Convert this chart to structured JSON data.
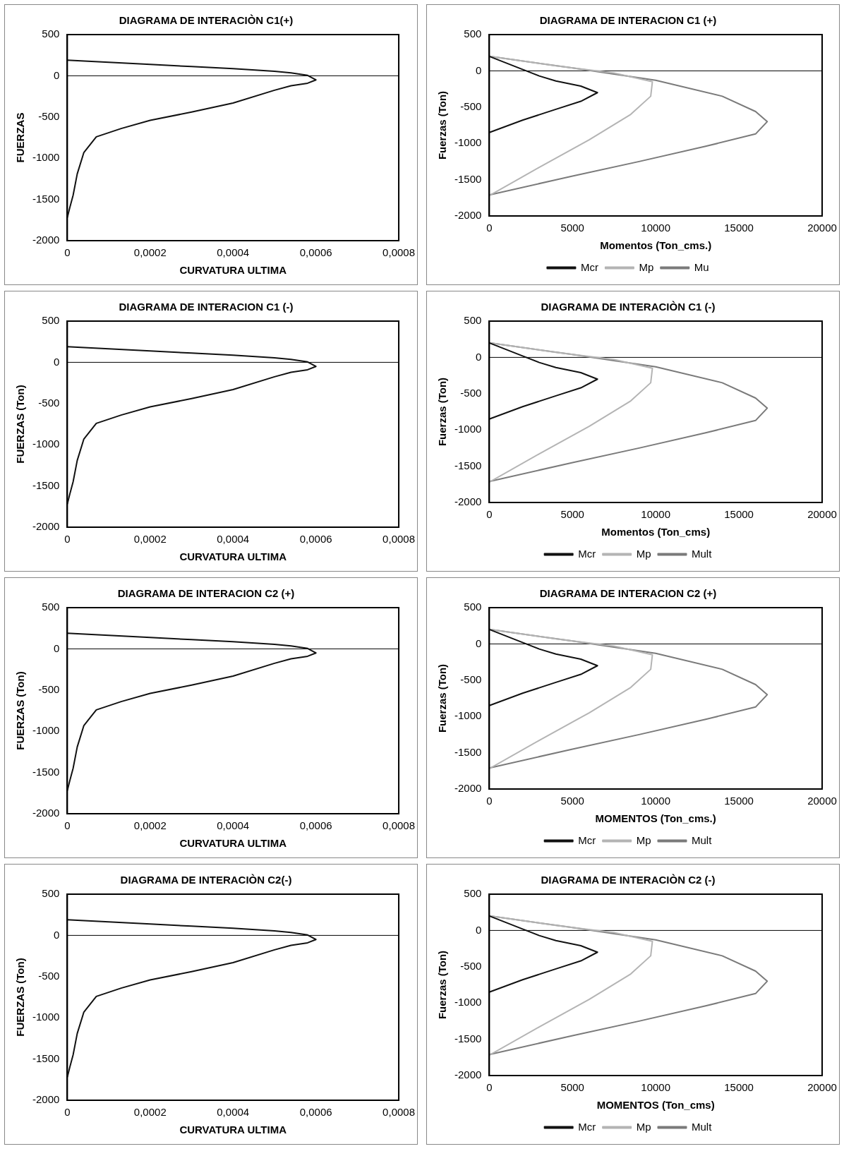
{
  "chart_data": [
    {
      "type": "line",
      "ref_lines": [
        {
          "axis": "y",
          "value": 0
        }
      ],
      "title": "DIAGRAMA DE INTERACIÒN C1(+)",
      "xlabel": "CURVATURA ULTIMA",
      "ylabel": "FUERZAS",
      "xlim": [
        0,
        0.0008
      ],
      "xticks": [
        0,
        {
          "value": 0.0002,
          "label": "0,0002"
        },
        {
          "value": 0.0004,
          "label": "0,0004"
        },
        {
          "value": 0.0006,
          "label": "0,0006"
        },
        {
          "value": 0.0008,
          "label": "0,0008"
        }
      ],
      "ylim": [
        -2000,
        500
      ],
      "yticks": [
        -2000,
        -1500,
        -1000,
        -500,
        0,
        500
      ],
      "grid": false,
      "legend": false,
      "marker": "none",
      "series": [
        {
          "color": "#111111",
          "x": [
            0,
            0.0001,
            0.0002,
            0.0003,
            0.0004,
            0.0005,
            0.00054,
            0.00058,
            0.0006,
            0.00058,
            0.00054,
            0.0005,
            0.0004,
            0.0003,
            0.0002,
            0.00013,
            7e-05,
            4e-05,
            2.4e-05,
            1.4e-05,
            6e-06,
            0
          ],
          "values": [
            190,
            165,
            138,
            112,
            86,
            55,
            35,
            5,
            -50,
            -90,
            -120,
            -175,
            -330,
            -440,
            -540,
            -640,
            -740,
            -930,
            -1190,
            -1450,
            -1600,
            -1720
          ]
        }
      ]
    },
    {
      "type": "line",
      "ref_lines": [
        {
          "axis": "y",
          "value": 0
        }
      ],
      "title": "DIAGRAMA DE INTERACION C1 (+)",
      "xlabel": "Momentos (Ton_cms.)",
      "ylabel": "Fuerzas (Ton)",
      "xlim": [
        0,
        20000
      ],
      "xticks": [
        0,
        5000,
        10000,
        15000,
        20000
      ],
      "ylim": [
        -2000,
        500
      ],
      "yticks": [
        -2000,
        -1500,
        -1000,
        -500,
        0,
        500
      ],
      "grid": false,
      "legend": "bottom",
      "marker": "none",
      "series": [
        {
          "name": "Mcr",
          "color": "#111111",
          "x": [
            0,
            1000,
            2000,
            3000,
            4000,
            5500,
            6500,
            5500,
            4000,
            2000,
            0
          ],
          "values": [
            200,
            110,
            20,
            -70,
            -140,
            -210,
            -300,
            -420,
            -530,
            -680,
            -850
          ]
        },
        {
          "name": "Mp",
          "color": "#b4b4b4",
          "x": [
            0,
            4000,
            7500,
            9800,
            9700,
            8500,
            6000,
            3000,
            0
          ],
          "values": [
            200,
            70,
            -30,
            -150,
            -350,
            -600,
            -950,
            -1330,
            -1720
          ]
        },
        {
          "name": "Mu",
          "color": "#7a7a7a",
          "x": [
            0,
            5000,
            10000,
            14000,
            16000,
            16700,
            16000,
            13000,
            9000,
            5000,
            0
          ],
          "values": [
            200,
            40,
            -130,
            -350,
            -560,
            -700,
            -870,
            -1040,
            -1250,
            -1450,
            -1710
          ]
        }
      ]
    },
    {
      "type": "line",
      "ref_lines": [
        {
          "axis": "y",
          "value": 0
        }
      ],
      "title": "DIAGRAMA DE INTERACION C1 (-)",
      "xlabel": "CURVATURA ULTIMA",
      "ylabel": "FUERZAS (Ton)",
      "xlim": [
        0,
        0.0008
      ],
      "xticks": [
        0,
        {
          "value": 0.0002,
          "label": "0,0002"
        },
        {
          "value": 0.0004,
          "label": "0,0004"
        },
        {
          "value": 0.0006,
          "label": "0,0006"
        },
        {
          "value": 0.0008,
          "label": "0,0008"
        }
      ],
      "ylim": [
        -2000,
        500
      ],
      "yticks": [
        -2000,
        -1500,
        -1000,
        -500,
        0,
        500
      ],
      "grid": false,
      "legend": false,
      "marker": "none",
      "series": [
        {
          "color": "#111111",
          "x": [
            0,
            0.0001,
            0.0002,
            0.0003,
            0.0004,
            0.0005,
            0.00054,
            0.00058,
            0.0006,
            0.00058,
            0.00054,
            0.0005,
            0.0004,
            0.0003,
            0.0002,
            0.00013,
            7e-05,
            4e-05,
            2.4e-05,
            1.4e-05,
            6e-06,
            0
          ],
          "values": [
            190,
            165,
            138,
            112,
            86,
            55,
            35,
            5,
            -50,
            -90,
            -120,
            -175,
            -330,
            -440,
            -540,
            -640,
            -740,
            -930,
            -1190,
            -1450,
            -1600,
            -1720
          ]
        }
      ]
    },
    {
      "type": "line",
      "ref_lines": [
        {
          "axis": "y",
          "value": 0
        }
      ],
      "title": "DIAGRAMA DE INTERACIÒN C1 (-)",
      "xlabel": "Momentos (Ton_cms)",
      "ylabel": "Fuerzas (Ton)",
      "xlim": [
        0,
        20000
      ],
      "xticks": [
        0,
        5000,
        10000,
        15000,
        20000
      ],
      "ylim": [
        -2000,
        500
      ],
      "yticks": [
        -2000,
        -1500,
        -1000,
        -500,
        0,
        500
      ],
      "grid": false,
      "legend": "bottom",
      "marker": "none",
      "series": [
        {
          "name": "Mcr",
          "color": "#111111",
          "x": [
            0,
            1000,
            2000,
            3000,
            4000,
            5500,
            6500,
            5500,
            4000,
            2000,
            0
          ],
          "values": [
            200,
            110,
            20,
            -70,
            -140,
            -210,
            -300,
            -420,
            -530,
            -680,
            -850
          ]
        },
        {
          "name": "Mp",
          "color": "#b4b4b4",
          "x": [
            0,
            4000,
            7500,
            9800,
            9700,
            8500,
            6000,
            3000,
            0
          ],
          "values": [
            200,
            70,
            -30,
            -150,
            -350,
            -600,
            -950,
            -1330,
            -1720
          ]
        },
        {
          "name": "Mult",
          "color": "#7a7a7a",
          "x": [
            0,
            5000,
            10000,
            14000,
            16000,
            16700,
            16000,
            13000,
            9000,
            5000,
            0
          ],
          "values": [
            200,
            40,
            -130,
            -350,
            -560,
            -700,
            -870,
            -1040,
            -1250,
            -1450,
            -1710
          ]
        }
      ]
    },
    {
      "type": "line",
      "ref_lines": [
        {
          "axis": "y",
          "value": 0
        }
      ],
      "title": "DIAGRAMA DE INTERACION C2 (+)",
      "xlabel": "CURVATURA ULTIMA",
      "ylabel": "FUERZAS (Ton)",
      "xlim": [
        0,
        0.0008
      ],
      "xticks": [
        0,
        {
          "value": 0.0002,
          "label": "0,0002"
        },
        {
          "value": 0.0004,
          "label": "0,0004"
        },
        {
          "value": 0.0006,
          "label": "0,0006"
        },
        {
          "value": 0.0008,
          "label": "0,0008"
        }
      ],
      "ylim": [
        -2000,
        500
      ],
      "yticks": [
        -2000,
        -1500,
        -1000,
        -500,
        0,
        500
      ],
      "grid": false,
      "legend": false,
      "marker": "none",
      "series": [
        {
          "color": "#111111",
          "x": [
            0,
            0.0001,
            0.0002,
            0.0003,
            0.0004,
            0.0005,
            0.00054,
            0.00058,
            0.0006,
            0.00058,
            0.00054,
            0.0005,
            0.0004,
            0.0003,
            0.0002,
            0.00013,
            7e-05,
            4e-05,
            2.4e-05,
            1.4e-05,
            6e-06,
            0
          ],
          "values": [
            190,
            165,
            138,
            112,
            86,
            55,
            35,
            5,
            -50,
            -90,
            -120,
            -175,
            -330,
            -440,
            -540,
            -640,
            -740,
            -930,
            -1190,
            -1450,
            -1600,
            -1720
          ]
        }
      ]
    },
    {
      "type": "line",
      "ref_lines": [
        {
          "axis": "y",
          "value": 0
        }
      ],
      "title": "DIAGRAMA DE INTERACION C2 (+)",
      "xlabel": "MOMENTOS (Ton_cms.)",
      "ylabel": "Fuerzas (Ton)",
      "xlim": [
        0,
        20000
      ],
      "xticks": [
        0,
        5000,
        10000,
        15000,
        20000
      ],
      "ylim": [
        -2000,
        500
      ],
      "yticks": [
        -2000,
        -1500,
        -1000,
        -500,
        0,
        500
      ],
      "grid": false,
      "legend": "bottom",
      "marker": "none",
      "series": [
        {
          "name": "Mcr",
          "color": "#111111",
          "x": [
            0,
            1000,
            2000,
            3000,
            4000,
            5500,
            6500,
            5500,
            4000,
            2000,
            0
          ],
          "values": [
            200,
            110,
            20,
            -70,
            -140,
            -210,
            -300,
            -420,
            -530,
            -680,
            -850
          ]
        },
        {
          "name": "Mp",
          "color": "#b4b4b4",
          "x": [
            0,
            4000,
            7500,
            9800,
            9700,
            8500,
            6000,
            3000,
            0
          ],
          "values": [
            200,
            70,
            -30,
            -150,
            -350,
            -600,
            -950,
            -1330,
            -1720
          ]
        },
        {
          "name": "Mult",
          "color": "#7a7a7a",
          "x": [
            0,
            5000,
            10000,
            14000,
            16000,
            16700,
            16000,
            13000,
            9000,
            5000,
            0
          ],
          "values": [
            200,
            40,
            -130,
            -350,
            -560,
            -700,
            -870,
            -1040,
            -1250,
            -1450,
            -1710
          ]
        }
      ]
    },
    {
      "type": "line",
      "ref_lines": [
        {
          "axis": "y",
          "value": 0
        }
      ],
      "title": "DIAGRAMA DE INTERACIÒN C2(-)",
      "xlabel": "CURVATURA ULTIMA",
      "ylabel": "FUERZAS (Ton)",
      "xlim": [
        0,
        0.0008
      ],
      "xticks": [
        0,
        {
          "value": 0.0002,
          "label": "0,0002"
        },
        {
          "value": 0.0004,
          "label": "0,0004"
        },
        {
          "value": 0.0006,
          "label": "0,0006"
        },
        {
          "value": 0.0008,
          "label": "0,0008"
        }
      ],
      "ylim": [
        -2000,
        500
      ],
      "yticks": [
        -2000,
        -1500,
        -1000,
        -500,
        0,
        500
      ],
      "grid": false,
      "legend": false,
      "marker": "none",
      "series": [
        {
          "color": "#111111",
          "x": [
            0,
            0.0001,
            0.0002,
            0.0003,
            0.0004,
            0.0005,
            0.00054,
            0.00058,
            0.0006,
            0.00058,
            0.00054,
            0.0005,
            0.0004,
            0.0003,
            0.0002,
            0.00013,
            7e-05,
            4e-05,
            2.4e-05,
            1.4e-05,
            6e-06,
            0
          ],
          "values": [
            190,
            165,
            138,
            112,
            86,
            55,
            35,
            5,
            -50,
            -90,
            -120,
            -175,
            -330,
            -440,
            -540,
            -640,
            -740,
            -930,
            -1190,
            -1450,
            -1600,
            -1720
          ]
        }
      ]
    },
    {
      "type": "line",
      "ref_lines": [
        {
          "axis": "y",
          "value": 0
        }
      ],
      "title": "DIAGRAMA DE INTERACIÒN C2 (-)",
      "xlabel": "MOMENTOS (Ton_cms)",
      "ylabel": "Fuerzas (Ton)",
      "xlim": [
        0,
        20000
      ],
      "xticks": [
        0,
        5000,
        10000,
        15000,
        20000
      ],
      "ylim": [
        -2000,
        500
      ],
      "yticks": [
        -2000,
        -1500,
        -1000,
        -500,
        0,
        500
      ],
      "grid": false,
      "legend": "bottom",
      "marker": "none",
      "series": [
        {
          "name": "Mcr",
          "color": "#111111",
          "x": [
            0,
            1000,
            2000,
            3000,
            4000,
            5500,
            6500,
            5500,
            4000,
            2000,
            0
          ],
          "values": [
            200,
            110,
            20,
            -70,
            -140,
            -210,
            -300,
            -420,
            -530,
            -680,
            -850
          ]
        },
        {
          "name": "Mp",
          "color": "#b4b4b4",
          "x": [
            0,
            4000,
            7500,
            9800,
            9700,
            8500,
            6000,
            3000,
            0
          ],
          "values": [
            200,
            70,
            -30,
            -150,
            -350,
            -600,
            -950,
            -1330,
            -1720
          ]
        },
        {
          "name": "Mult",
          "color": "#7a7a7a",
          "x": [
            0,
            5000,
            10000,
            14000,
            16000,
            16700,
            16000,
            13000,
            9000,
            5000,
            0
          ],
          "values": [
            200,
            40,
            -130,
            -350,
            -560,
            -700,
            -870,
            -1040,
            -1250,
            -1450,
            -1710
          ]
        }
      ]
    }
  ]
}
